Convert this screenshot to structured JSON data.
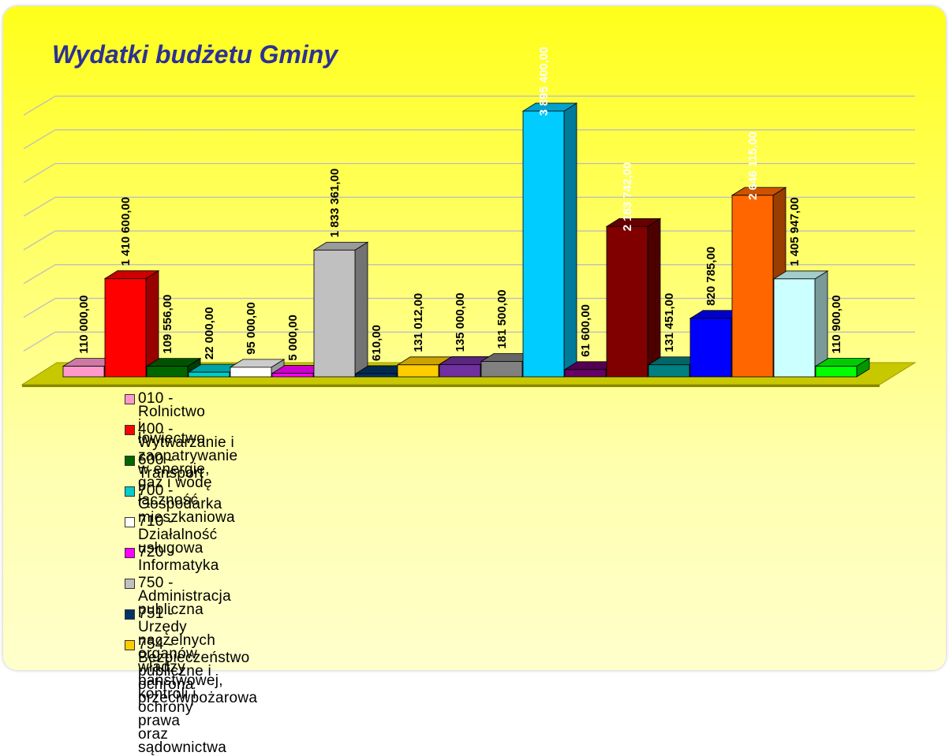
{
  "chart_data": {
    "type": "bar3d",
    "title": "Wydatki budżetu Gminy",
    "categories": [
      "010 - Rolnictwo i łowiectwo",
      "400 - Wytwarzanie i zaopatrywanie w energię, gaz i wodę",
      "600 - Transport i łączność",
      "700 - Gospodarka mieszkaniowa",
      "710 - Działalność usługowa",
      "720 - Informatyka",
      "750 - Administracja publiczna",
      "751 - Urzędy naczelnych organów władzy państwowej, kontroli i ochrony prawa\noraz sądownictwa",
      "754 - Bezpieczeństwo publiczne i ochrona przeciwpożarowa",
      null,
      null,
      null,
      null,
      null,
      null,
      null,
      null,
      null,
      null
    ],
    "values": [
      110000,
      1410600,
      109556,
      22000,
      95000,
      5000,
      1833361,
      610,
      131012,
      135000,
      181500,
      3895400,
      61600,
      2183742,
      131451,
      820785,
      2646115,
      1405947,
      110900
    ],
    "value_labels": [
      "110 000,00",
      "1 410 600,00",
      "109 556,00",
      "22 000,00",
      "95 000,00",
      "5 000,00",
      "1 833 361,00",
      "610,00",
      "131 012,00",
      "135 000,00",
      "181 500,00",
      "3 895 400,00",
      "61 600,00",
      "2 183 742,00",
      "131 451,00",
      "820 785,00",
      "2 646 115,00",
      "1 405 947,00",
      "110 900,00"
    ],
    "colors": [
      "#ff99cc",
      "#ff0000",
      "#006600",
      "#00cccc",
      "#ffffff",
      "#ff00ff",
      "#c0c0c0",
      "#003366",
      "#ffcc00",
      "#7030a0",
      "#808080",
      "#00ccff",
      "#660066",
      "#800000",
      "#008080",
      "#0000ff",
      "#ff6600",
      "#ccffff",
      "#00ff00"
    ],
    "ylim": [
      0,
      4000000
    ],
    "yticks": [
      0,
      500000,
      1000000,
      1500000,
      2000000,
      2500000,
      3000000,
      3500000,
      4000000
    ],
    "grid": true
  }
}
